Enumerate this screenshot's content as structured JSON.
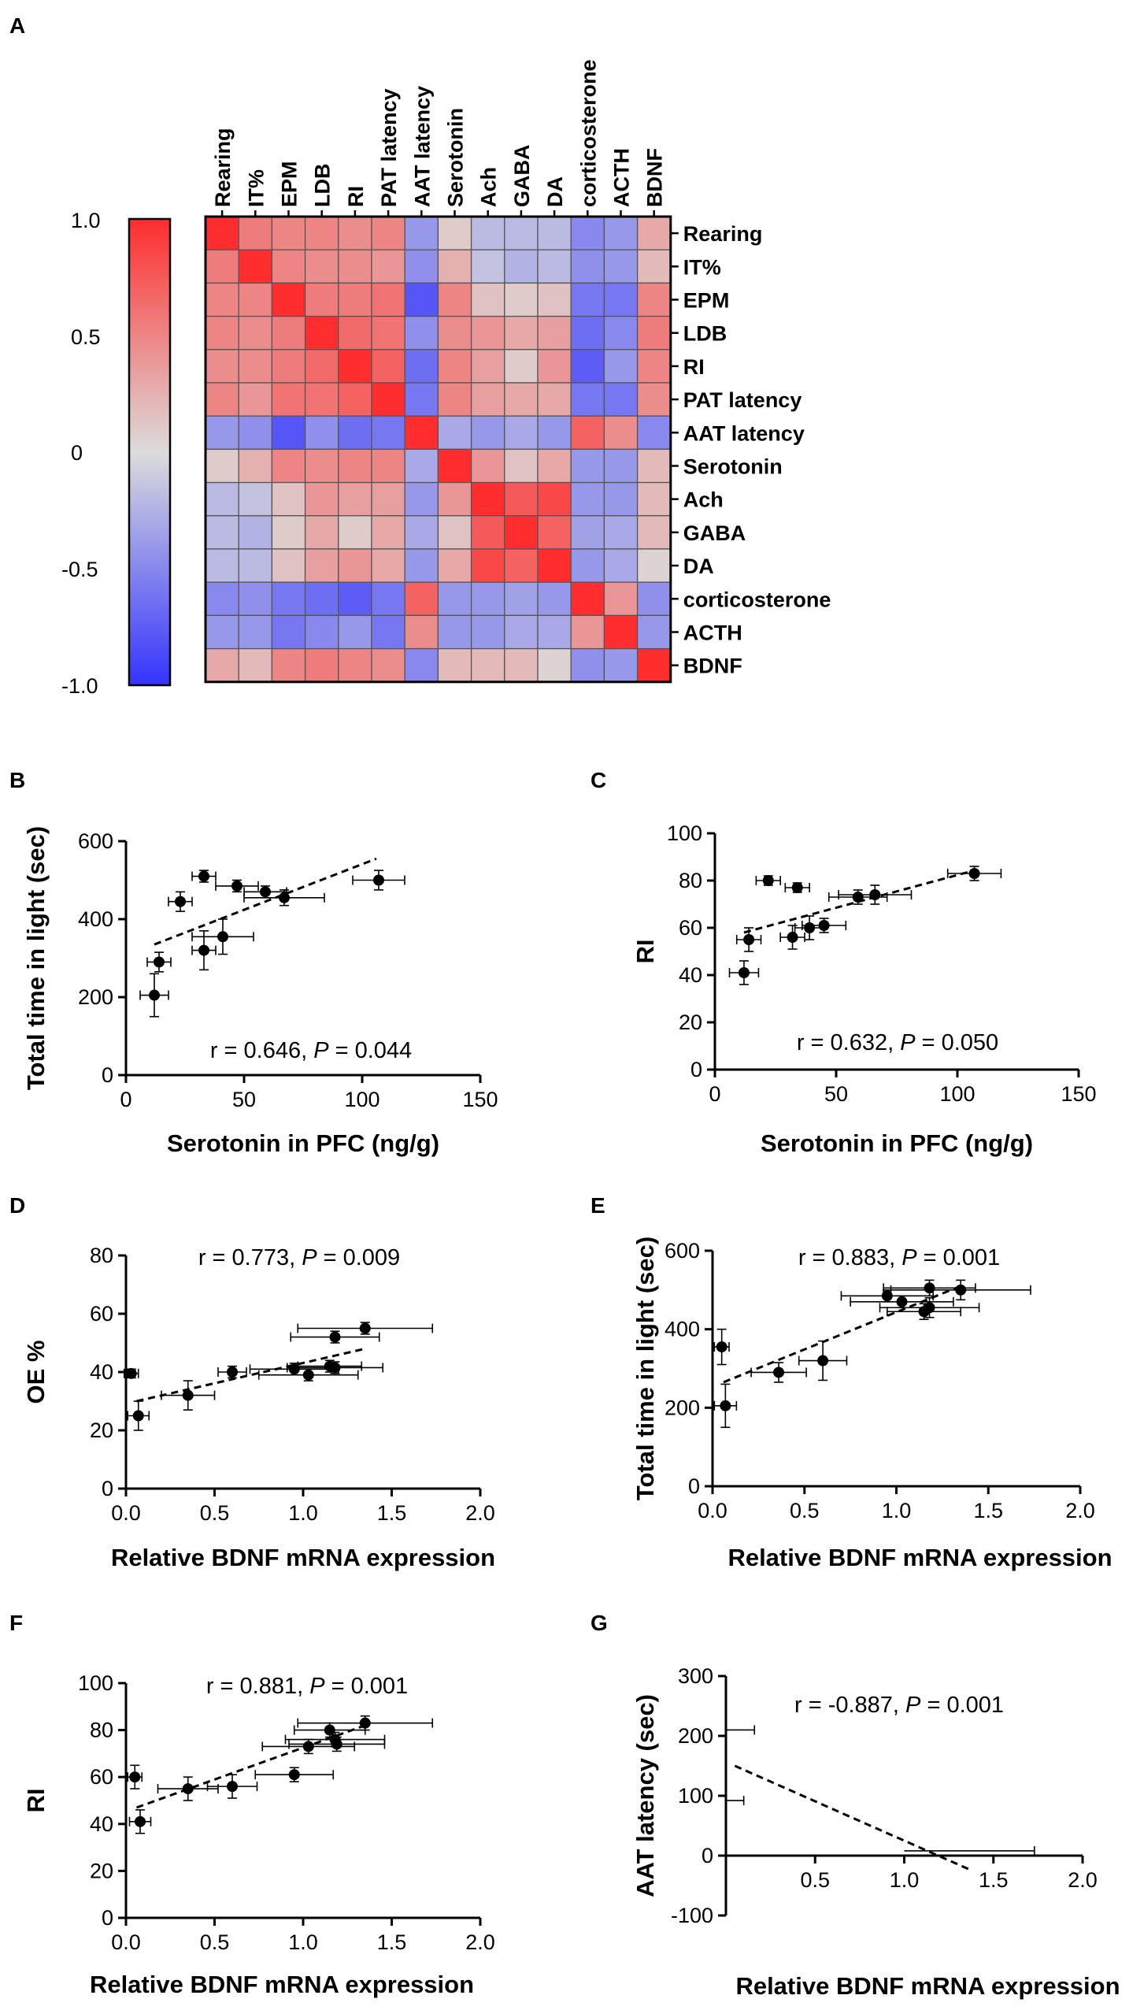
{
  "chart_data": [
    {
      "panel": "A",
      "type": "heatmap",
      "labels": [
        "Rearing",
        "IT%",
        "EPM",
        "LDB",
        "RI",
        "PAT latency",
        "AAT latency",
        "Serotonin",
        "Ach",
        "GABA",
        "DA",
        "corticosterone",
        "ACTH",
        "BDNF"
      ],
      "colorbar": {
        "ticks": [
          "1.0",
          "0.5",
          "0",
          "-0.5",
          "-1.0"
        ],
        "range": [
          -1,
          1
        ]
      },
      "matrix": [
        [
          1.0,
          0.55,
          0.5,
          0.5,
          0.45,
          0.5,
          -0.4,
          0.1,
          -0.2,
          -0.2,
          -0.2,
          -0.5,
          -0.4,
          0.3
        ],
        [
          0.55,
          1.0,
          0.5,
          0.45,
          0.45,
          0.4,
          -0.45,
          0.25,
          -0.15,
          -0.25,
          -0.2,
          -0.45,
          -0.4,
          0.2
        ],
        [
          0.5,
          0.5,
          1.0,
          0.55,
          0.55,
          0.6,
          -0.8,
          0.5,
          0.15,
          0.1,
          0.15,
          -0.6,
          -0.6,
          0.5
        ],
        [
          0.5,
          0.45,
          0.55,
          1.0,
          0.65,
          0.6,
          -0.45,
          0.45,
          0.4,
          0.3,
          0.35,
          -0.65,
          -0.5,
          0.55
        ],
        [
          0.45,
          0.45,
          0.55,
          0.65,
          1.0,
          0.7,
          -0.65,
          0.5,
          0.35,
          0.1,
          0.4,
          -0.75,
          -0.4,
          0.5
        ],
        [
          0.5,
          0.4,
          0.6,
          0.6,
          0.7,
          1.0,
          -0.6,
          0.5,
          0.35,
          0.3,
          0.3,
          -0.6,
          -0.6,
          0.45
        ],
        [
          -0.4,
          -0.45,
          -0.8,
          -0.45,
          -0.65,
          -0.6,
          1.0,
          -0.3,
          -0.4,
          -0.3,
          -0.4,
          0.7,
          0.45,
          -0.5
        ],
        [
          0.1,
          0.25,
          0.5,
          0.45,
          0.5,
          0.5,
          -0.3,
          1.0,
          0.4,
          0.15,
          0.3,
          -0.4,
          -0.4,
          0.2
        ],
        [
          -0.2,
          -0.15,
          0.15,
          0.4,
          0.35,
          0.35,
          -0.4,
          0.4,
          1.0,
          0.75,
          0.85,
          -0.4,
          -0.4,
          0.2
        ],
        [
          -0.2,
          -0.25,
          0.1,
          0.3,
          0.1,
          0.3,
          -0.3,
          0.15,
          0.75,
          1.0,
          0.7,
          -0.35,
          -0.3,
          0.2
        ],
        [
          -0.2,
          -0.2,
          0.15,
          0.35,
          0.4,
          0.3,
          -0.4,
          0.3,
          0.85,
          0.7,
          1.0,
          -0.4,
          -0.3,
          0.05
        ],
        [
          -0.5,
          -0.45,
          -0.6,
          -0.65,
          -0.75,
          -0.6,
          0.7,
          -0.4,
          -0.4,
          -0.35,
          -0.4,
          1.0,
          0.4,
          -0.45
        ],
        [
          -0.4,
          -0.4,
          -0.6,
          -0.5,
          -0.4,
          -0.6,
          0.45,
          -0.4,
          -0.4,
          -0.3,
          -0.3,
          0.4,
          1.0,
          -0.4
        ],
        [
          0.3,
          0.2,
          0.5,
          0.55,
          0.5,
          0.45,
          -0.5,
          0.2,
          0.2,
          0.2,
          0.05,
          -0.45,
          -0.4,
          1.0
        ]
      ]
    },
    {
      "panel": "B",
      "type": "scatter",
      "xlabel": "Serotonin in PFC (ng/g)",
      "ylabel": "Total time in light (sec)",
      "xlim": [
        0,
        150
      ],
      "ylim": [
        0,
        600
      ],
      "xticks": [
        0,
        50,
        100,
        150
      ],
      "yticks": [
        0,
        200,
        400,
        600
      ],
      "stat_r": "r = 0.646, ",
      "stat_p_label": "P",
      "stat_p": " = 0.044",
      "fit": [
        [
          12,
          335
        ],
        [
          106,
          555
        ]
      ],
      "points": [
        {
          "x": 12,
          "y": 205,
          "xerr": 6,
          "yerr": 55
        },
        {
          "x": 14,
          "y": 290,
          "xerr": 5,
          "yerr": 25
        },
        {
          "x": 23,
          "y": 445,
          "xerr": 5,
          "yerr": 25
        },
        {
          "x": 33,
          "y": 510,
          "xerr": 5,
          "yerr": 15
        },
        {
          "x": 33,
          "y": 320,
          "xerr": 5,
          "yerr": 50
        },
        {
          "x": 41,
          "y": 355,
          "xerr": 13,
          "yerr": 45
        },
        {
          "x": 47,
          "y": 485,
          "xerr": 9,
          "yerr": 15
        },
        {
          "x": 59,
          "y": 470,
          "xerr": 9,
          "yerr": 15
        },
        {
          "x": 67,
          "y": 455,
          "xerr": 17,
          "yerr": 20
        },
        {
          "x": 107,
          "y": 500,
          "xerr": 11,
          "yerr": 25
        }
      ]
    },
    {
      "panel": "C",
      "type": "scatter",
      "xlabel": "Serotonin in PFC (ng/g)",
      "ylabel": "RI",
      "xlim": [
        0,
        150
      ],
      "ylim": [
        0,
        100
      ],
      "xticks": [
        0,
        50,
        100,
        150
      ],
      "yticks": [
        0,
        20,
        40,
        60,
        80,
        100
      ],
      "stat_r": "r = 0.632, ",
      "stat_p_label": "P",
      "stat_p": " = 0.050",
      "fit": [
        [
          12,
          58
        ],
        [
          106,
          84
        ]
      ],
      "points": [
        {
          "x": 12,
          "y": 41,
          "xerr": 6,
          "yerr": 5
        },
        {
          "x": 14,
          "y": 55,
          "xerr": 5,
          "yerr": 5
        },
        {
          "x": 22,
          "y": 80,
          "xerr": 5,
          "yerr": 2
        },
        {
          "x": 32,
          "y": 56,
          "xerr": 5,
          "yerr": 5
        },
        {
          "x": 34,
          "y": 77,
          "xerr": 5,
          "yerr": 2
        },
        {
          "x": 39,
          "y": 60,
          "xerr": 6,
          "yerr": 5
        },
        {
          "x": 45,
          "y": 61,
          "xerr": 9,
          "yerr": 3
        },
        {
          "x": 59,
          "y": 73,
          "xerr": 12,
          "yerr": 3
        },
        {
          "x": 66,
          "y": 74,
          "xerr": 15,
          "yerr": 4
        },
        {
          "x": 107,
          "y": 83,
          "xerr": 11,
          "yerr": 3
        }
      ]
    },
    {
      "panel": "D",
      "type": "scatter",
      "xlabel": "Relative BDNF mRNA expression",
      "ylabel": "OE %",
      "xlim": [
        0,
        2.0
      ],
      "ylim": [
        0,
        80
      ],
      "xticks": [
        0,
        0.5,
        1.0,
        1.5,
        2.0
      ],
      "yticks": [
        0,
        20,
        40,
        60,
        80
      ],
      "stat_r": "r = 0.773, ",
      "stat_p_label": "P",
      "stat_p": " = 0.009",
      "fit": [
        [
          0.06,
          30
        ],
        [
          1.35,
          48
        ]
      ],
      "points": [
        {
          "x": 0.03,
          "y": 39.5,
          "xerr": 0.04,
          "yerr": 1.5
        },
        {
          "x": 0.07,
          "y": 25,
          "xerr": 0.06,
          "yerr": 5
        },
        {
          "x": 0.35,
          "y": 32,
          "xerr": 0.15,
          "yerr": 5
        },
        {
          "x": 0.6,
          "y": 40,
          "xerr": 0.08,
          "yerr": 2
        },
        {
          "x": 0.95,
          "y": 41,
          "xerr": 0.25,
          "yerr": 2
        },
        {
          "x": 1.03,
          "y": 39,
          "xerr": 0.28,
          "yerr": 2
        },
        {
          "x": 1.15,
          "y": 42,
          "xerr": 0.18,
          "yerr": 2
        },
        {
          "x": 1.18,
          "y": 41.5,
          "xerr": 0.27,
          "yerr": 2
        },
        {
          "x": 1.18,
          "y": 52,
          "xerr": 0.25,
          "yerr": 2
        },
        {
          "x": 1.35,
          "y": 55,
          "xerr": 0.38,
          "yerr": 2
        }
      ]
    },
    {
      "panel": "E",
      "type": "scatter",
      "xlabel": "Relative BDNF mRNA expression",
      "ylabel": "Total time in light (sec)",
      "xlim": [
        0,
        2.0
      ],
      "ylim": [
        0,
        600
      ],
      "xticks": [
        0,
        0.5,
        1.0,
        1.5,
        2.0
      ],
      "yticks": [
        0,
        200,
        400,
        600
      ],
      "stat_r": "r = 0.883, ",
      "stat_p_label": "P",
      "stat_p": " = 0.001",
      "fit": [
        [
          0.06,
          265
        ],
        [
          1.35,
          510
        ]
      ],
      "points": [
        {
          "x": 0.05,
          "y": 355,
          "xerr": 0.04,
          "yerr": 45
        },
        {
          "x": 0.07,
          "y": 205,
          "xerr": 0.06,
          "yerr": 55
        },
        {
          "x": 0.36,
          "y": 290,
          "xerr": 0.15,
          "yerr": 25
        },
        {
          "x": 0.6,
          "y": 320,
          "xerr": 0.13,
          "yerr": 50
        },
        {
          "x": 0.95,
          "y": 485,
          "xerr": 0.25,
          "yerr": 15
        },
        {
          "x": 1.03,
          "y": 470,
          "xerr": 0.28,
          "yerr": 15
        },
        {
          "x": 1.15,
          "y": 445,
          "xerr": 0.2,
          "yerr": 20
        },
        {
          "x": 1.18,
          "y": 455,
          "xerr": 0.27,
          "yerr": 25
        },
        {
          "x": 1.18,
          "y": 505,
          "xerr": 0.25,
          "yerr": 20
        },
        {
          "x": 1.35,
          "y": 500,
          "xerr": 0.38,
          "yerr": 25
        }
      ]
    },
    {
      "panel": "F",
      "type": "scatter",
      "xlabel": "Relative BDNF mRNA expression",
      "ylabel": "RI",
      "xlim": [
        0,
        2.0
      ],
      "ylim": [
        0,
        100
      ],
      "xticks": [
        0,
        0.5,
        1.0,
        1.5,
        2.0
      ],
      "yticks": [
        0,
        20,
        40,
        60,
        80,
        100
      ],
      "stat_r": "r = 0.881, ",
      "stat_p_label": "P",
      "stat_p": " = 0.001",
      "fit": [
        [
          0.06,
          47
        ],
        [
          1.35,
          82
        ]
      ],
      "points": [
        {
          "x": 0.05,
          "y": 60,
          "xerr": 0.04,
          "yerr": 5
        },
        {
          "x": 0.08,
          "y": 41,
          "xerr": 0.06,
          "yerr": 5
        },
        {
          "x": 0.35,
          "y": 55,
          "xerr": 0.17,
          "yerr": 5
        },
        {
          "x": 0.6,
          "y": 56,
          "xerr": 0.14,
          "yerr": 5
        },
        {
          "x": 0.95,
          "y": 61,
          "xerr": 0.22,
          "yerr": 3
        },
        {
          "x": 1.03,
          "y": 73,
          "xerr": 0.26,
          "yerr": 3
        },
        {
          "x": 1.15,
          "y": 80,
          "xerr": 0.2,
          "yerr": 3
        },
        {
          "x": 1.18,
          "y": 76,
          "xerr": 0.28,
          "yerr": 3
        },
        {
          "x": 1.19,
          "y": 74,
          "xerr": 0.27,
          "yerr": 3
        },
        {
          "x": 1.35,
          "y": 83,
          "xerr": 0.38,
          "yerr": 3
        }
      ]
    },
    {
      "panel": "G",
      "type": "scatter",
      "xlabel": "Relative BDNF mRNA expression",
      "ylabel": "AAT latency (sec)",
      "xlim": [
        0,
        2.0
      ],
      "ylim": [
        -100,
        300
      ],
      "xticks": [
        0.5,
        1.0,
        1.5,
        2.0
      ],
      "yticks": [
        -100,
        0,
        100,
        200,
        300
      ],
      "stat_r": "r = -0.887, ",
      "stat_p_label": "P",
      "stat_p": " = 0.001",
      "fit": [
        [
          0.05,
          150
        ],
        [
          1.38,
          -25
        ]
      ],
      "points": [],
      "hbars": [
        {
          "x0": 0.0,
          "x1": 0.16,
          "y": 210
        },
        {
          "x0": 0.0,
          "x1": 0.1,
          "y": 92
        },
        {
          "x0": 1.0,
          "x1": 1.73,
          "y": 8
        }
      ]
    }
  ]
}
